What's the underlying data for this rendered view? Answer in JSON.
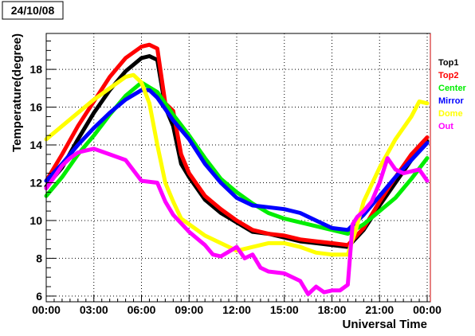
{
  "date_label": "24/10/08",
  "chart_data": {
    "type": "line",
    "title": "",
    "xlabel": "Universal Time",
    "ylabel": "Temperature(degree)",
    "xlim": [
      0,
      24.2
    ],
    "ylim": [
      5.7,
      19.9
    ],
    "x_ticks": [
      {
        "value": 0,
        "label": "00:00"
      },
      {
        "value": 3,
        "label": "03:00"
      },
      {
        "value": 6,
        "label": "06:00"
      },
      {
        "value": 9,
        "label": "09:00"
      },
      {
        "value": 12,
        "label": "12:00"
      },
      {
        "value": 15,
        "label": "15:00"
      },
      {
        "value": 18,
        "label": "18:00"
      },
      {
        "value": 21,
        "label": "21:00"
      },
      {
        "value": 24,
        "label": "00:00"
      }
    ],
    "y_ticks": [
      6,
      8,
      10,
      12,
      14,
      16,
      18
    ],
    "grid": true,
    "legend_position": "top-right",
    "series": [
      {
        "name": "Top1",
        "color": "#000000",
        "x": [
          0,
          1,
          2,
          3,
          4,
          5,
          6,
          6.5,
          7,
          7.5,
          8,
          8.5,
          9,
          10,
          11,
          12,
          13,
          14,
          15,
          16,
          17,
          18,
          19,
          20,
          21,
          22,
          23,
          24
        ],
        "y": [
          11.8,
          12.8,
          14.3,
          15.7,
          16.9,
          17.9,
          18.6,
          18.7,
          18.5,
          16.0,
          15.0,
          13.0,
          12.3,
          11.1,
          10.4,
          9.9,
          9.4,
          9.3,
          9.1,
          8.9,
          8.8,
          8.7,
          8.6,
          9.5,
          10.8,
          12.0,
          13.2,
          14.2
        ]
      },
      {
        "name": "Top2",
        "color": "#ff0000",
        "x": [
          0,
          1,
          2,
          3,
          4,
          5,
          6,
          6.5,
          7,
          7.5,
          8,
          8.5,
          9,
          10,
          11,
          12,
          13,
          14,
          15,
          16,
          17,
          18,
          19,
          20,
          21,
          22,
          23,
          24
        ],
        "y": [
          12.1,
          13.5,
          15.0,
          16.3,
          17.6,
          18.6,
          19.2,
          19.3,
          19.1,
          16.2,
          15.8,
          13.5,
          12.5,
          11.3,
          10.6,
          10.0,
          9.5,
          9.3,
          9.2,
          9.0,
          8.9,
          8.8,
          8.7,
          9.6,
          11.0,
          12.3,
          13.5,
          14.4
        ]
      },
      {
        "name": "Center",
        "color": "#00ee00",
        "x": [
          0,
          1,
          2,
          3,
          4,
          5,
          6,
          7,
          8,
          9,
          10,
          11,
          12,
          13,
          14,
          15,
          16,
          17,
          18,
          19,
          20,
          21,
          22,
          23,
          24
        ],
        "y": [
          11.3,
          12.3,
          13.5,
          14.5,
          15.6,
          16.6,
          17.3,
          16.8,
          15.6,
          14.5,
          13.3,
          12.2,
          11.5,
          10.9,
          10.4,
          10.1,
          9.9,
          9.7,
          9.5,
          9.3,
          9.8,
          10.5,
          11.2,
          12.2,
          13.3
        ]
      },
      {
        "name": "Mirror",
        "color": "#0000ff",
        "x": [
          0,
          1,
          2,
          3,
          4,
          5,
          6,
          6.5,
          7,
          8,
          9,
          10,
          11,
          12,
          13,
          14,
          15,
          16,
          17,
          18,
          19,
          20,
          21,
          22,
          23,
          24
        ],
        "y": [
          12.1,
          13.0,
          14.0,
          14.9,
          15.7,
          16.4,
          16.9,
          16.9,
          16.5,
          15.3,
          14.3,
          13.0,
          12.0,
          11.2,
          10.8,
          10.7,
          10.6,
          10.4,
          10.0,
          9.6,
          9.5,
          10.3,
          11.3,
          12.3,
          13.2,
          14.1
        ]
      },
      {
        "name": "Dome",
        "color": "#ffff00",
        "x": [
          0,
          1,
          2,
          3,
          4,
          5,
          5.5,
          6,
          6.5,
          7,
          7.5,
          8,
          8.5,
          9,
          10,
          11,
          12,
          13,
          14,
          15,
          16,
          17,
          18,
          19,
          19.5,
          20,
          21,
          22,
          23,
          23.5,
          24
        ],
        "y": [
          14.3,
          15.0,
          15.7,
          16.4,
          17.0,
          17.6,
          17.7,
          17.3,
          16.2,
          14.0,
          12.0,
          11.0,
          10.1,
          9.8,
          9.2,
          8.8,
          8.4,
          8.6,
          8.8,
          8.8,
          8.6,
          8.3,
          8.2,
          8.2,
          9.5,
          11.0,
          12.8,
          14.3,
          15.5,
          16.3,
          16.2
        ]
      },
      {
        "name": "Out",
        "color": "#ff00ff",
        "x": [
          0,
          0.5,
          1,
          1.5,
          2,
          2.5,
          3,
          4,
          5,
          6,
          7,
          7.5,
          8,
          9,
          10,
          10.5,
          11,
          12,
          12.5,
          13,
          13.5,
          14,
          15,
          16,
          16.5,
          17,
          17.5,
          18,
          18.5,
          19,
          19.3,
          19.6,
          20,
          20.5,
          21,
          21.5,
          22,
          22.5,
          23,
          23.5,
          24
        ],
        "y": [
          11.7,
          12.3,
          12.9,
          13.3,
          13.6,
          13.7,
          13.8,
          13.5,
          13.2,
          12.1,
          12.0,
          11.0,
          10.3,
          9.4,
          8.7,
          8.2,
          8.1,
          8.6,
          8.0,
          8.2,
          7.5,
          7.3,
          7.2,
          6.8,
          6.1,
          6.5,
          6.2,
          6.3,
          6.3,
          6.6,
          9.8,
          10.2,
          10.5,
          11.0,
          12.0,
          13.3,
          12.7,
          12.5,
          12.6,
          12.7,
          12.1
        ]
      }
    ]
  }
}
